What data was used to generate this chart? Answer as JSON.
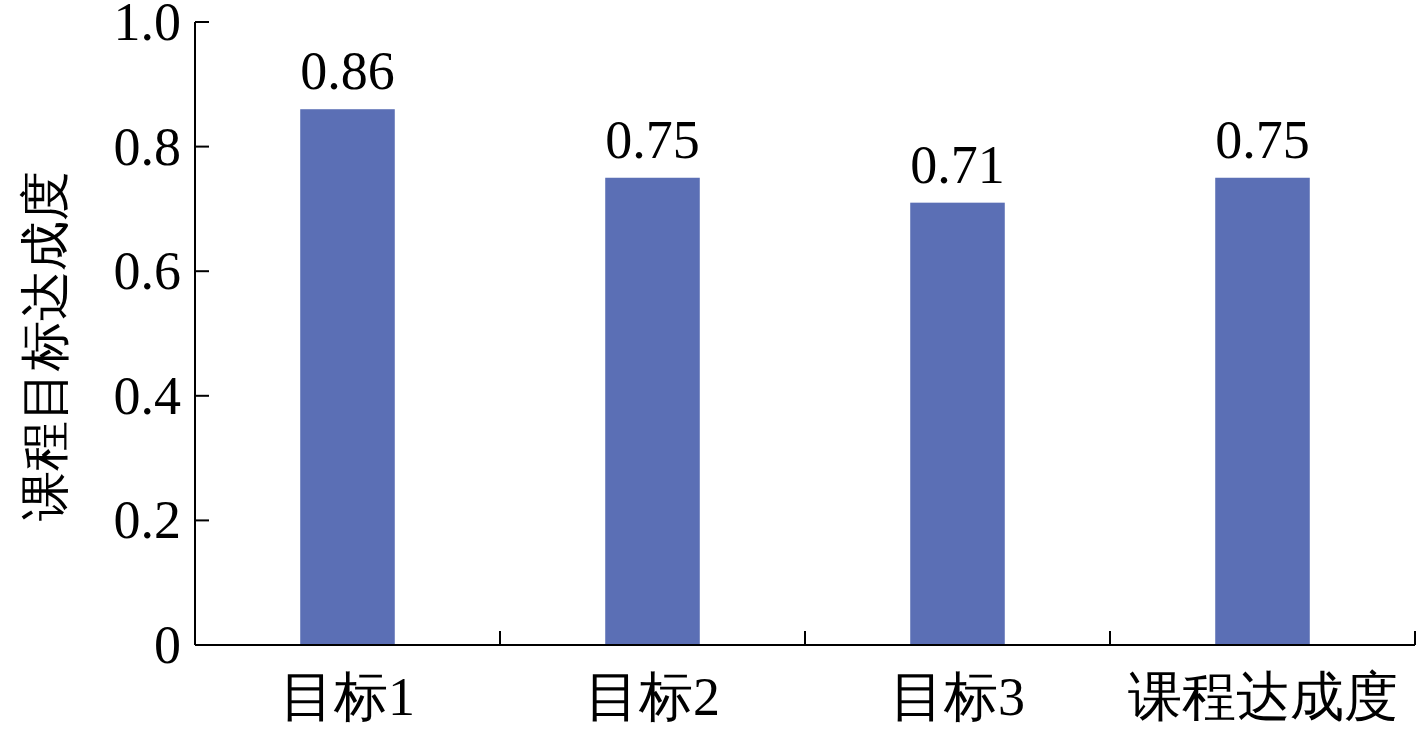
{
  "chart_data": {
    "type": "bar",
    "ylabel": "课程目标达成度",
    "categories": [
      "目标1",
      "目标2",
      "目标3",
      "课程达成度"
    ],
    "values": [
      0.86,
      0.75,
      0.71,
      0.75
    ],
    "color": "#5b6fb5",
    "ylim": [
      0,
      1
    ],
    "yticks": [
      0,
      0.2,
      0.4,
      0.6,
      0.8,
      {
        "value": 1,
        "label": "1.0"
      }
    ],
    "data_labels": true,
    "grid": false
  }
}
